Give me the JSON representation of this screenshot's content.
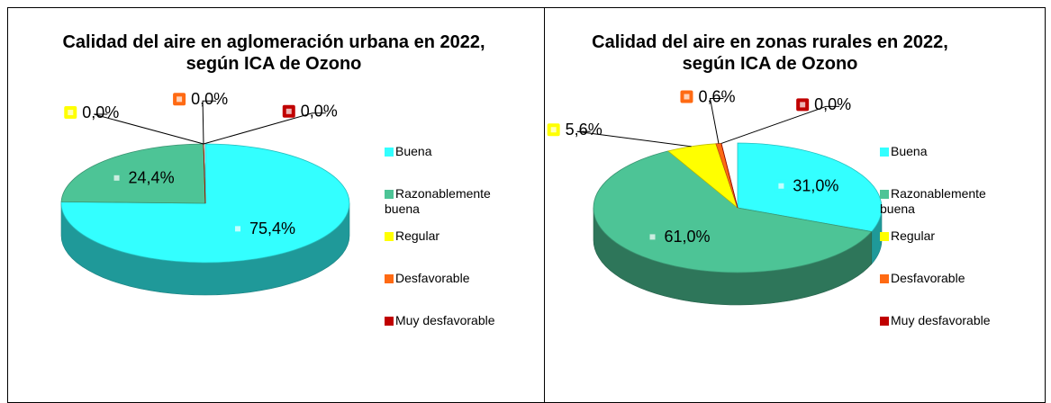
{
  "chart_data": [
    {
      "type": "pie",
      "title": "Calidad del aire en aglomeración urbana en 2022, según ICA de Ozono",
      "categories": [
        "Buena",
        "Razonablemente buena",
        "Regular",
        "Desfavorable",
        "Muy desfavorable"
      ],
      "values": [
        75.4,
        24.4,
        0.0,
        0.0,
        0.0
      ],
      "value_labels": [
        "75,4%",
        "24,4%",
        "0,0%",
        "0,0%",
        "0,0%"
      ],
      "colors": [
        "#33ffff",
        "#4dc496",
        "#ffff00",
        "#ff6a13",
        "#c00000"
      ],
      "legend": "right"
    },
    {
      "type": "pie",
      "title": "Calidad del aire en zonas rurales en 2022, según ICA de Ozono",
      "categories": [
        "Buena",
        "Razonablemente buena",
        "Regular",
        "Desfavorable",
        "Muy desfavorable"
      ],
      "values": [
        31.0,
        61.0,
        5.6,
        0.6,
        0.0
      ],
      "value_labels": [
        "31,0%",
        "61,0%",
        "5,6%",
        "0,6%",
        "0,0%"
      ],
      "colors": [
        "#33ffff",
        "#4dc496",
        "#ffff00",
        "#ff6a13",
        "#c00000"
      ],
      "legend": "right"
    }
  ]
}
